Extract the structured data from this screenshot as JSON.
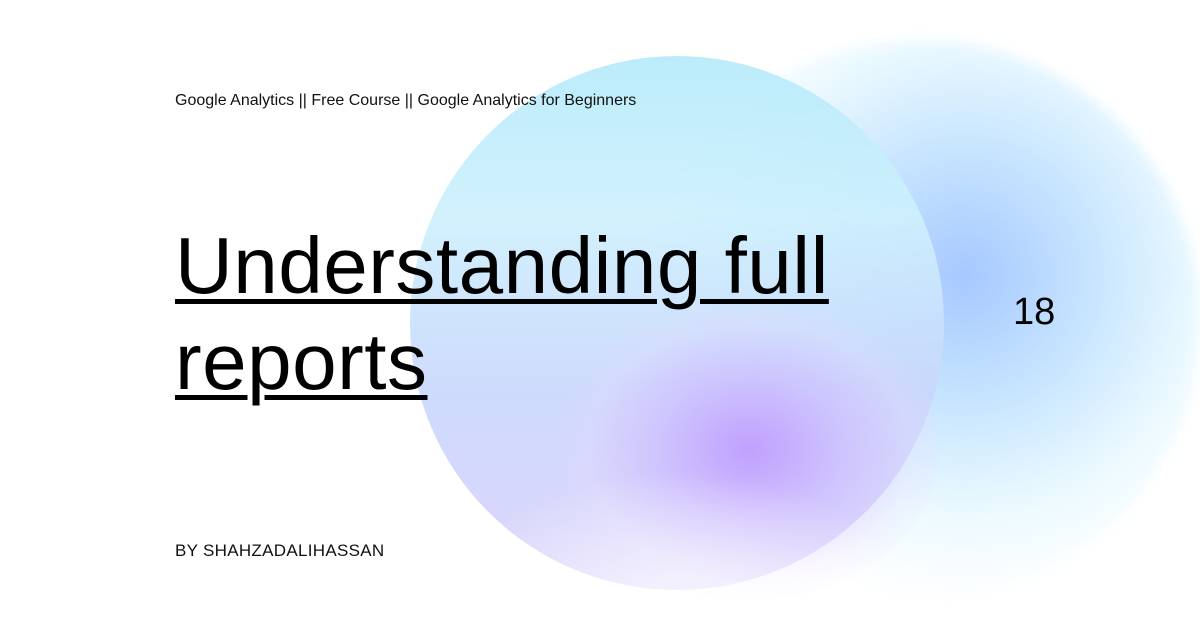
{
  "header": {
    "series_title": "Google Analytics || Free Course || Google Analytics for Beginners"
  },
  "main": {
    "title": "Understanding full reports",
    "episode_number": "18"
  },
  "footer": {
    "byline": "BY SHAHZADALIHASSAN"
  },
  "colors": {
    "background": "#ffffff",
    "text": "#000000",
    "circle_cyan": "#b8ebfa",
    "glow_purple": "#be96ff",
    "glow_blue": "#96beff"
  }
}
